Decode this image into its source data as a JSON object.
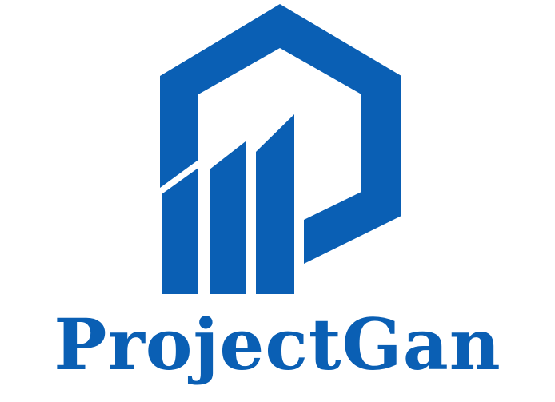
{
  "brand": {
    "name": "ProjectGan",
    "color": "#0a5fb4",
    "logo_icon": "building-bars-hexagon-icon"
  }
}
